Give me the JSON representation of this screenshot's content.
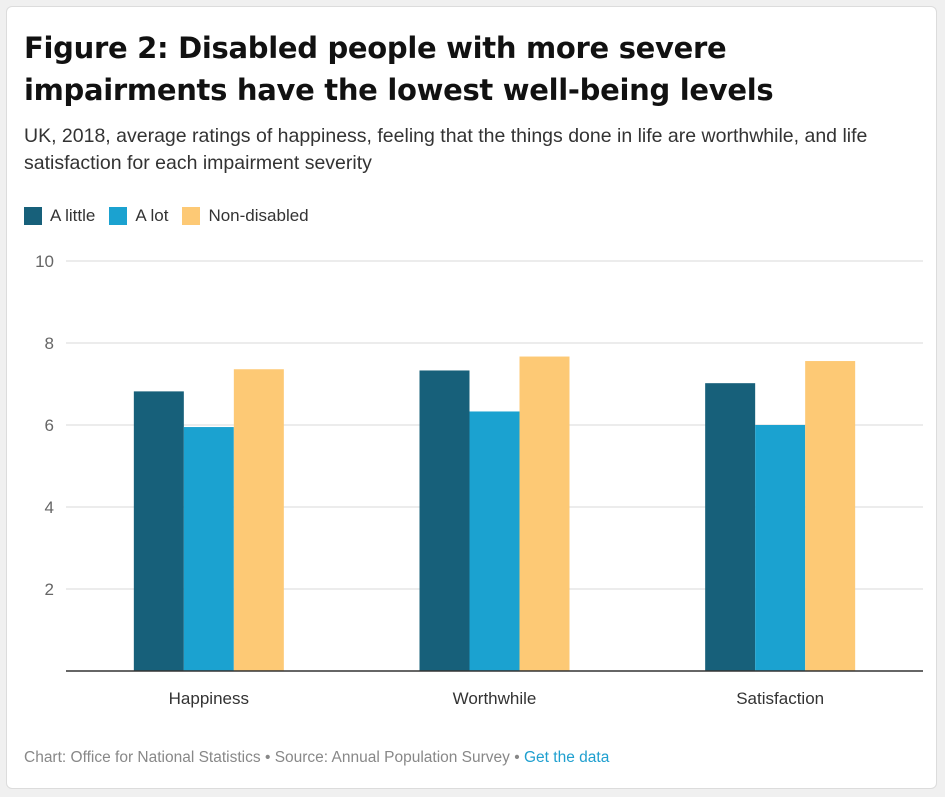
{
  "title": "Figure 2: Disabled people with more severe impairments have the lowest well-being levels",
  "subtitle": "UK, 2018, average ratings of happiness, feeling that the things done in life are worthwhile, and life satisfaction for each impairment severity",
  "footer": {
    "chart_credit": "Chart: Office for National Statistics",
    "source": "Source: Annual Population Survey",
    "separator": "•",
    "link_label": "Get the data"
  },
  "chart_data": {
    "type": "bar",
    "title": "Figure 2: Disabled people with more severe impairments have the lowest well-being levels",
    "subtitle": "UK, 2018, average ratings of happiness, feeling that the things done in life are worthwhile, and life satisfaction for each impairment severity",
    "categories": [
      "Happiness",
      "Worthwhile",
      "Satisfaction"
    ],
    "series": [
      {
        "name": "A little",
        "color": "#17607a",
        "values": [
          6.82,
          7.33,
          7.02
        ]
      },
      {
        "name": "A lot",
        "color": "#1ba2d0",
        "values": [
          5.95,
          6.33,
          6.0
        ]
      },
      {
        "name": "Non-disabled",
        "color": "#fdc975",
        "values": [
          7.36,
          7.67,
          7.56
        ]
      }
    ],
    "ylim": [
      0,
      10
    ],
    "yticks": [
      2,
      4,
      6,
      8,
      10
    ],
    "grid": true,
    "legend_position": "top-left",
    "xlabel": "",
    "ylabel": ""
  }
}
